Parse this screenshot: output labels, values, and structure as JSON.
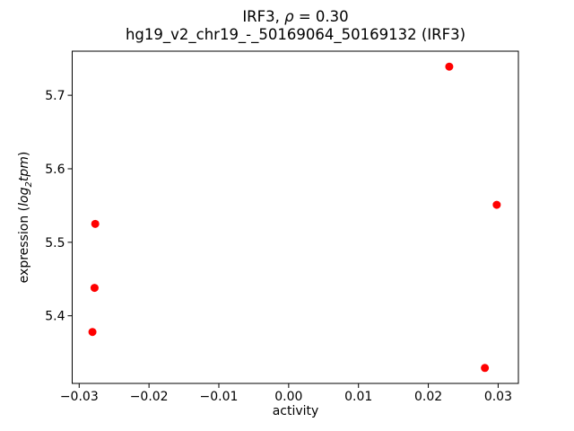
{
  "figure": {
    "background": "#ffffff",
    "title_line1": {
      "pre": "IRF3, ",
      "rho": "ρ",
      "post": " = 0.30"
    },
    "title_line2": "hg19_v2_chr19_-_50169064_50169132 (IRF3)"
  },
  "labels": {
    "xlabel": "activity",
    "ylabel_pre": "expression (",
    "ylabel_log": "log",
    "ylabel_sub": "2",
    "ylabel_tpm": "tpm",
    "ylabel_close": ")"
  },
  "chart_data": {
    "type": "scatter",
    "title": "IRF3, ρ = 0.30",
    "subtitle": "hg19_v2_chr19_-_50169064_50169132 (IRF3)",
    "xlabel": "activity",
    "ylabel": "expression (log2tpm)",
    "rho": 0.3,
    "grid": false,
    "legend": null,
    "marker": {
      "shape": "circle",
      "color": "#ff0000",
      "radius_px": 4.5
    },
    "axis_color": "#000000",
    "xlim": [
      -0.031,
      0.0329
    ],
    "ylim": [
      5.308,
      5.76
    ],
    "x_ticks": {
      "values": [
        -0.03,
        -0.02,
        -0.01,
        0.0,
        0.01,
        0.02,
        0.03
      ],
      "labels": [
        "−0.03",
        "−0.02",
        "−0.01",
        "0.00",
        "0.01",
        "0.02",
        "0.03"
      ]
    },
    "y_ticks": {
      "values": [
        5.4,
        5.5,
        5.6,
        5.7
      ],
      "labels": [
        "5.4",
        "5.5",
        "5.6",
        "5.7"
      ]
    },
    "points": [
      {
        "x": -0.0277,
        "y": 5.525
      },
      {
        "x": -0.0278,
        "y": 5.438
      },
      {
        "x": -0.0281,
        "y": 5.378
      },
      {
        "x": 0.023,
        "y": 5.739
      },
      {
        "x": 0.0298,
        "y": 5.551
      },
      {
        "x": 0.0281,
        "y": 5.329
      }
    ]
  }
}
